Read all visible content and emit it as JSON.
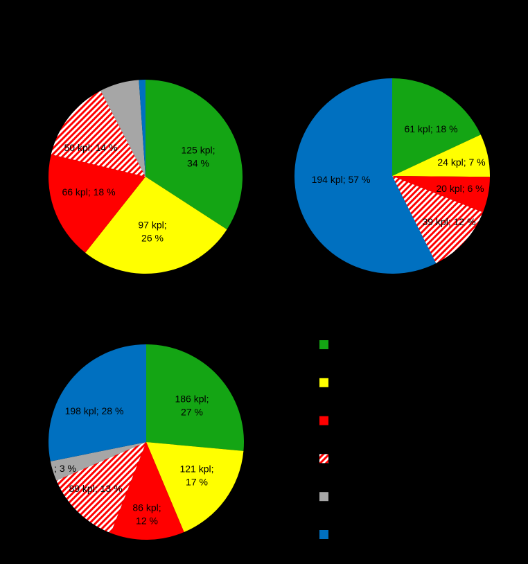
{
  "colors": {
    "background": "#000000",
    "green": "#14A514",
    "yellow": "#FFFF00",
    "red": "#FF0000",
    "red_hatch_fg": "#FF0000",
    "red_hatch_bg": "#FFFFFF",
    "gray": "#A6A6A6",
    "blue": "#0070C0"
  },
  "legend": {
    "placement": "bottom-right",
    "items": [
      {
        "icon": "green-square-icon",
        "fill": "green"
      },
      {
        "icon": "yellow-square-icon",
        "fill": "yellow"
      },
      {
        "icon": "red-square-icon",
        "fill": "red"
      },
      {
        "icon": "red-hatched-square-icon",
        "fill": "red_hatch"
      },
      {
        "icon": "gray-square-icon",
        "fill": "gray"
      },
      {
        "icon": "blue-square-icon",
        "fill": "blue"
      }
    ]
  },
  "chart_data": [
    {
      "type": "pie",
      "placement": "top-left",
      "slices": [
        {
          "fill": "green",
          "value": 125,
          "percent": 34,
          "label": [
            "125 kpl;",
            "34 %"
          ]
        },
        {
          "fill": "yellow",
          "value": 97,
          "percent": 26,
          "label": [
            "97 kpl;",
            "26 %"
          ]
        },
        {
          "fill": "red",
          "value": 66,
          "percent": 18,
          "label": [
            "66 kpl; 18 %"
          ]
        },
        {
          "fill": "red_hatch",
          "value": 50,
          "percent": 14,
          "label": [
            "50 kpl; 14 %"
          ]
        },
        {
          "fill": "gray",
          "value": 24,
          "percent": 7,
          "label": []
        },
        {
          "fill": "blue",
          "value": 4,
          "percent": 1,
          "label": []
        }
      ]
    },
    {
      "type": "pie",
      "placement": "top-right",
      "slices": [
        {
          "fill": "green",
          "value": 61,
          "percent": 18,
          "label": [
            "61 kpl; 18 %"
          ]
        },
        {
          "fill": "yellow",
          "value": 24,
          "percent": 7,
          "label": [
            "24 kpl; 7 %"
          ]
        },
        {
          "fill": "red",
          "value": 20,
          "percent": 6,
          "label": [
            "20 kpl; 6 %"
          ]
        },
        {
          "fill": "red_hatch",
          "value": 39,
          "percent": 12,
          "label": [
            "39 kpl; 12 %"
          ]
        },
        {
          "fill": "gray",
          "value": 0,
          "percent": 0,
          "label": []
        },
        {
          "fill": "blue",
          "value": 194,
          "percent": 57,
          "label": [
            "194 kpl; 57 %"
          ]
        }
      ]
    },
    {
      "type": "pie",
      "placement": "bottom-left",
      "slices": [
        {
          "fill": "green",
          "value": 186,
          "percent": 27,
          "label": [
            "186 kpl;",
            "27 %"
          ]
        },
        {
          "fill": "yellow",
          "value": 121,
          "percent": 17,
          "label": [
            "121 kpl;",
            "17 %"
          ]
        },
        {
          "fill": "red",
          "value": 86,
          "percent": 12,
          "label": [
            "86 kpl;",
            "12 %"
          ]
        },
        {
          "fill": "red_hatch",
          "value": 89,
          "percent": 13,
          "label": [
            "89 kpl; 13 %"
          ]
        },
        {
          "fill": "gray",
          "value": 23,
          "percent": 3,
          "label": [
            "; 3 %"
          ]
        },
        {
          "fill": "blue",
          "value": 198,
          "percent": 28,
          "label": [
            "198 kpl; 28 %"
          ]
        }
      ]
    }
  ]
}
